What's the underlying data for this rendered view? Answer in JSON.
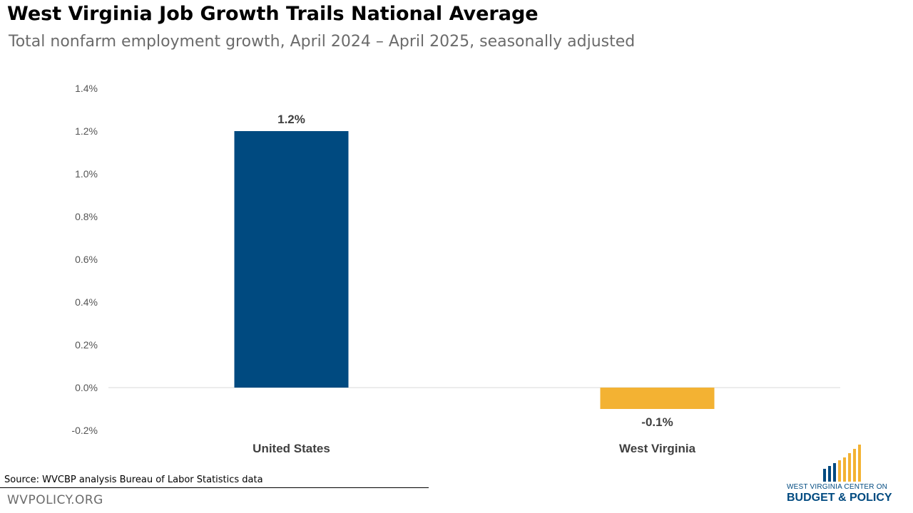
{
  "header": {
    "title": "West Virginia Job Growth Trails National Average",
    "subtitle": "Total nonfarm employment growth, April 2024 – April 2025, seasonally adjusted"
  },
  "chart_data": {
    "type": "bar",
    "title": "West Virginia Job Growth Trails National Average",
    "subtitle": "Total nonfarm employment growth, April 2024 – April 2025, seasonally adjusted",
    "categories": [
      "United States",
      "West Virginia"
    ],
    "values": [
      1.2,
      -0.1
    ],
    "value_labels": [
      "1.2%",
      "-0.1%"
    ],
    "colors": [
      "#004a80",
      "#f3b233"
    ],
    "ylim": [
      -0.2,
      1.4
    ],
    "yticks": [
      -0.2,
      0.0,
      0.2,
      0.4,
      0.6,
      0.8,
      1.0,
      1.2,
      1.4
    ],
    "ytick_labels": [
      "-0.2%",
      "0.0%",
      "0.2%",
      "0.4%",
      "0.6%",
      "0.8%",
      "1.0%",
      "1.2%",
      "1.4%"
    ],
    "xlabel": "",
    "ylabel": "",
    "grid": false,
    "legend": "none"
  },
  "footer": {
    "source": "Source: WVCBP analysis Bureau of Labor Statistics data",
    "site": "WVPOLICY.ORG"
  },
  "logo": {
    "line1": "WEST VIRGINIA CENTER ON",
    "line2": "BUDGET & POLICY",
    "colors": [
      "#004a80",
      "#f3b233"
    ]
  }
}
